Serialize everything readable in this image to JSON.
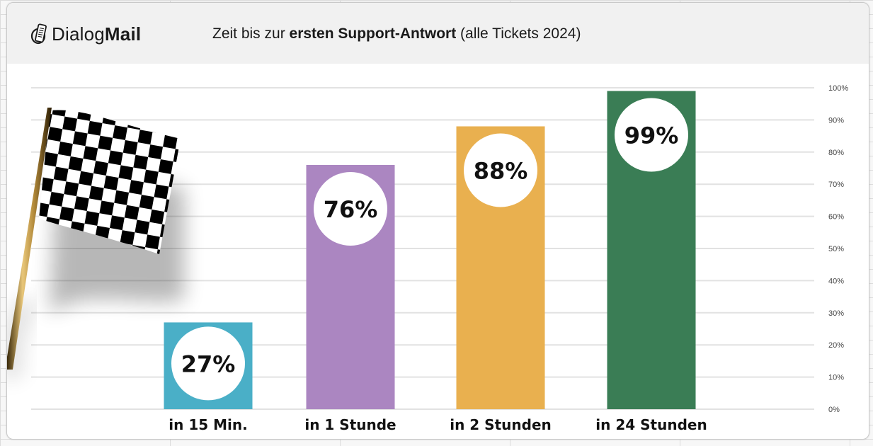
{
  "brand": {
    "logo_icon": "phone-mail-icon",
    "name_regular": "Dialog",
    "name_bold": "Mail"
  },
  "header": {
    "title_prefix": "Zeit bis zur ",
    "title_bold": "ersten Support-Antwort",
    "title_suffix": " (alle Tickets 2024)"
  },
  "decoration": {
    "flag_icon": "checkered-flag-icon"
  },
  "chart_data": {
    "type": "bar",
    "title": "Zeit bis zur ersten Support-Antwort (alle Tickets 2024)",
    "xlabel": "",
    "ylabel": "",
    "categories": [
      "in 15 Min.",
      "in 1 Stunde",
      "in 2 Stunden",
      "in 24 Stunden"
    ],
    "values": [
      27,
      76,
      88,
      99
    ],
    "data_labels": [
      "27%",
      "76%",
      "88%",
      "99%"
    ],
    "colors": [
      "#4aafc7",
      "#ab86c1",
      "#e9b04f",
      "#3a7d55"
    ],
    "ylim": [
      0,
      100
    ],
    "yticks": [
      0,
      10,
      20,
      30,
      40,
      50,
      60,
      70,
      80,
      90,
      100
    ],
    "ytick_labels": [
      "0%",
      "10%",
      "20%",
      "30%",
      "40%",
      "50%",
      "60%",
      "70%",
      "80%",
      "90%",
      "100%"
    ],
    "y_axis_position": "right",
    "grid": true,
    "legend": "none"
  }
}
